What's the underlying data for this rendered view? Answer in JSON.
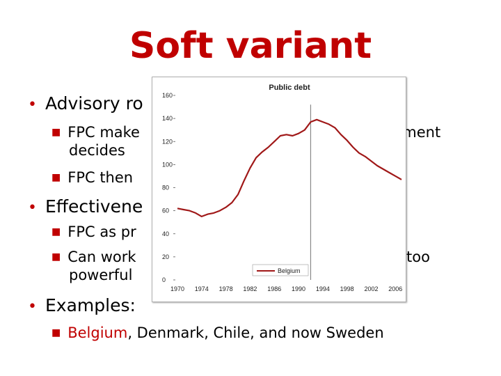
{
  "slide": {
    "title": "Soft variant",
    "bullets": [
      {
        "text": "Advisory ro"
      },
      {
        "text": "Effectivene"
      },
      {
        "text": "Examples:"
      }
    ],
    "subs": [
      {
        "line1": "FPC make",
        "line1_right": "nment",
        "line2": "decides"
      },
      {
        "line1": "FPC then"
      },
      {
        "line1": "FPC as pr"
      },
      {
        "line1": "Can work",
        "line1_right": "too",
        "line2": "powerful"
      }
    ],
    "examples": {
      "belgium": "Belgium",
      "rest": ", Denmark, Chile, and now Sweden"
    }
  },
  "colors": {
    "title": "#c00000",
    "bullet": "#c00000",
    "series": "#a01818"
  },
  "chart_data": {
    "type": "line",
    "title": "Public debt",
    "xlabel": "",
    "ylabel": "",
    "ylim": [
      0,
      160
    ],
    "xlim": [
      1970,
      2007
    ],
    "yticks": [
      0,
      20,
      40,
      60,
      80,
      100,
      120,
      140,
      160
    ],
    "xticks": [
      1970,
      1974,
      1978,
      1982,
      1986,
      1990,
      1994,
      1998,
      2002,
      2006
    ],
    "vline_x": 1992,
    "legend": "bottom-center",
    "series": [
      {
        "name": "Belgium",
        "x": [
          1970,
          1971,
          1972,
          1973,
          1974,
          1975,
          1976,
          1977,
          1978,
          1979,
          1980,
          1981,
          1982,
          1983,
          1984,
          1985,
          1986,
          1987,
          1988,
          1989,
          1990,
          1991,
          1992,
          1993,
          1994,
          1995,
          1996,
          1997,
          1998,
          1999,
          2000,
          2001,
          2002,
          2003,
          2004,
          2005,
          2006,
          2007
        ],
        "y": [
          62,
          61,
          60,
          58,
          55,
          57,
          58,
          60,
          63,
          67,
          74,
          86,
          97,
          106,
          111,
          115,
          120,
          125,
          126,
          125,
          127,
          130,
          137,
          139,
          137,
          135,
          132,
          126,
          121,
          115,
          110,
          107,
          103,
          99,
          96,
          93,
          90,
          87
        ]
      }
    ]
  }
}
